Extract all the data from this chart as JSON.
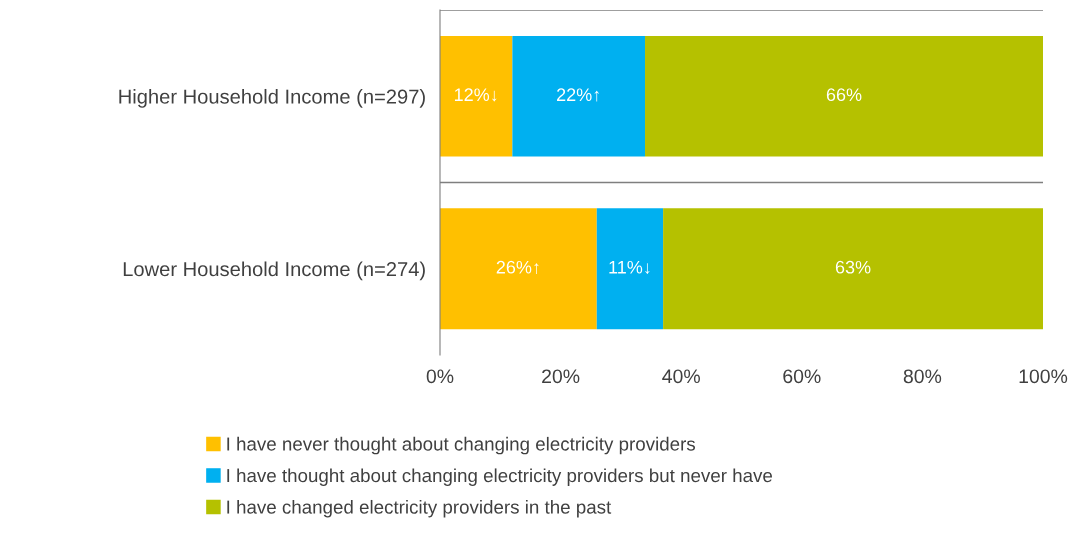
{
  "chart_data": {
    "type": "bar",
    "orientation": "horizontal",
    "stacked": true,
    "categories": [
      "Higher Household Income (n=297)",
      "Lower Household Income (n=274)"
    ],
    "series": [
      {
        "name": "I have never thought about changing electricity providers",
        "color": "#ffc000",
        "values": [
          12,
          26
        ],
        "value_labels": [
          "12%↓",
          "26%↑"
        ]
      },
      {
        "name": "I have thought about changing electricity providers but never have",
        "color": "#00b0f0",
        "values": [
          22,
          11
        ],
        "value_labels": [
          "22%↑",
          "11%↓"
        ]
      },
      {
        "name": "I have changed electricity providers in the past",
        "color": "#b5c100",
        "values": [
          66,
          63
        ],
        "value_labels": [
          "66%",
          "63%"
        ]
      }
    ],
    "xlim": [
      0,
      100
    ],
    "xticks": [
      {
        "value": 0,
        "label": "0%"
      },
      {
        "value": 20,
        "label": "20%"
      },
      {
        "value": 40,
        "label": "40%"
      },
      {
        "value": 60,
        "label": "60%"
      },
      {
        "value": 80,
        "label": "80%"
      },
      {
        "value": 100,
        "label": "100%"
      }
    ],
    "grid": "y",
    "legend": "bottom"
  }
}
